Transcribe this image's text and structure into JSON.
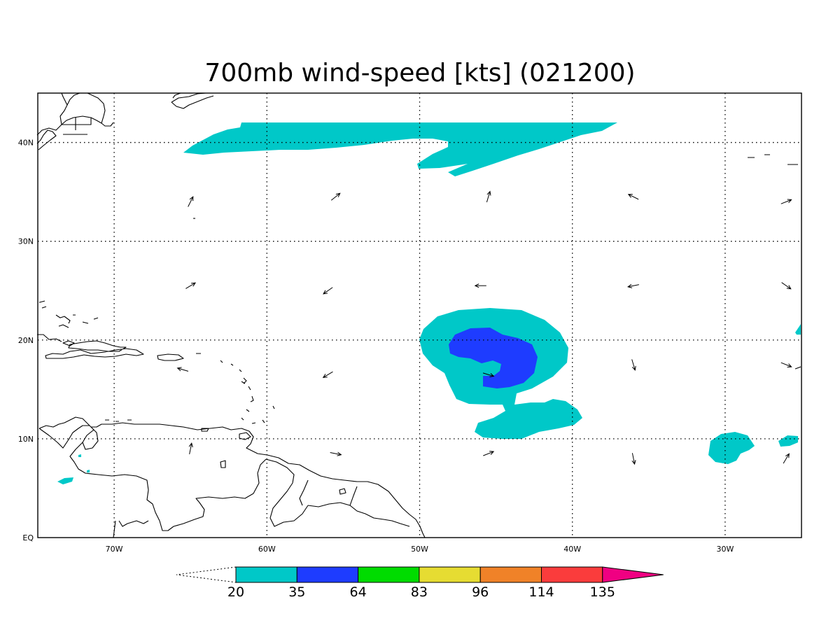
{
  "title": "700mb wind-speed [kts] (021200)",
  "map": {
    "lon_range": [
      -75,
      -25
    ],
    "lat_range": [
      0,
      45
    ],
    "x_ticks": [
      {
        "lon": -70,
        "label": "70W"
      },
      {
        "lon": -60,
        "label": "60W"
      },
      {
        "lon": -50,
        "label": "50W"
      },
      {
        "lon": -40,
        "label": "40W"
      },
      {
        "lon": -30,
        "label": "30W"
      }
    ],
    "y_ticks": [
      {
        "lat": 0,
        "label": "EQ"
      },
      {
        "lat": 10,
        "label": "10N"
      },
      {
        "lat": 20,
        "label": "20N"
      },
      {
        "lat": 30,
        "label": "30N"
      },
      {
        "lat": 40,
        "label": "40N"
      }
    ],
    "grid": "dotted"
  },
  "colorbar": {
    "labels": [
      "20",
      "35",
      "64",
      "83",
      "96",
      "114",
      "135"
    ],
    "colors": [
      "#00c8c8",
      "#1e3cff",
      "#00dc00",
      "#e6dc32",
      "#f08228",
      "#fa3c3c",
      "#f00082"
    ]
  },
  "wind_vectors": [
    {
      "lon": -65,
      "lat": 34,
      "dir": [
        0.5,
        1.0
      ]
    },
    {
      "lon": -55.5,
      "lat": 34.5,
      "dir": [
        1,
        0.8
      ]
    },
    {
      "lon": -45.5,
      "lat": 34.5,
      "dir": [
        0.3,
        1
      ]
    },
    {
      "lon": -36,
      "lat": 34.5,
      "dir": [
        -1,
        0.5
      ]
    },
    {
      "lon": -26,
      "lat": 34,
      "dir": [
        1,
        0.4
      ]
    },
    {
      "lon": -65,
      "lat": 25.5,
      "dir": [
        1,
        0.6
      ]
    },
    {
      "lon": -56,
      "lat": 25,
      "dir": [
        -1,
        -0.7
      ]
    },
    {
      "lon": -46,
      "lat": 25.5,
      "dir": [
        -1,
        0
      ]
    },
    {
      "lon": -36,
      "lat": 25.5,
      "dir": [
        -1,
        -0.2
      ]
    },
    {
      "lon": -26,
      "lat": 25.5,
      "dir": [
        1,
        -0.7
      ]
    },
    {
      "lon": -65.5,
      "lat": 17,
      "dir": [
        -1,
        0.3
      ]
    },
    {
      "lon": -56,
      "lat": 16.5,
      "dir": [
        -1,
        -0.6
      ]
    },
    {
      "lon": -45.5,
      "lat": 16.5,
      "dir": [
        1,
        -0.3
      ]
    },
    {
      "lon": -36,
      "lat": 17.5,
      "dir": [
        0.3,
        -1
      ]
    },
    {
      "lon": -26,
      "lat": 17.5,
      "dir": [
        1,
        -0.4
      ]
    },
    {
      "lon": -65,
      "lat": 9,
      "dir": [
        0.2,
        1
      ]
    },
    {
      "lon": -55.5,
      "lat": 8.5,
      "dir": [
        1,
        -0.2
      ]
    },
    {
      "lon": -45.5,
      "lat": 8.5,
      "dir": [
        1,
        0.4
      ]
    },
    {
      "lon": -36,
      "lat": 8,
      "dir": [
        0.2,
        -1
      ]
    },
    {
      "lon": -26,
      "lat": 8,
      "dir": [
        0.6,
        1
      ]
    }
  ]
}
